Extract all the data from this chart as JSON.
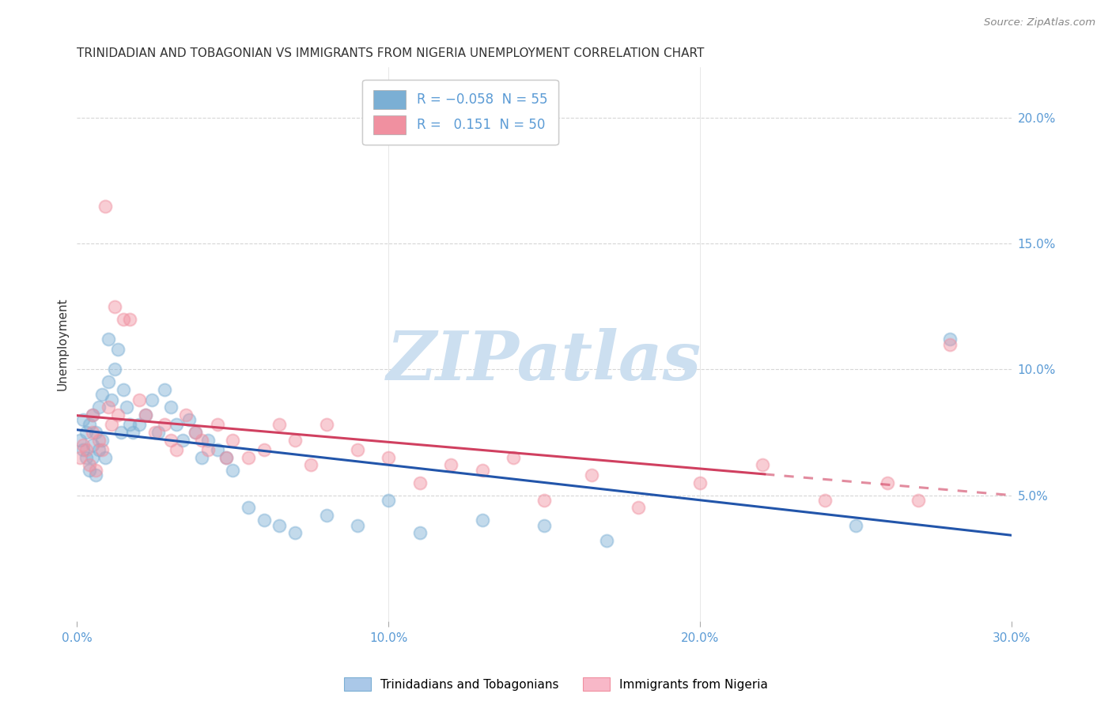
{
  "title": "TRINIDADIAN AND TOBAGONIAN VS IMMIGRANTS FROM NIGERIA UNEMPLOYMENT CORRELATION CHART",
  "source": "Source: ZipAtlas.com",
  "ylabel": "Unemployment",
  "xlim": [
    0.0,
    0.3
  ],
  "ylim": [
    0.0,
    0.22
  ],
  "right_yticks": [
    0.05,
    0.1,
    0.15,
    0.2
  ],
  "right_yticklabels": [
    "5.0%",
    "10.0%",
    "15.0%",
    "20.0%"
  ],
  "xticks": [
    0.0,
    0.1,
    0.2,
    0.3
  ],
  "xticklabels": [
    "0.0%",
    "10.0%",
    "20.0%",
    "30.0%"
  ],
  "blue_color": "#7bafd4",
  "blue_line_color": "#2255aa",
  "pink_color": "#f090a0",
  "pink_line_color": "#d04060",
  "watermark": "ZIPatlas",
  "watermark_color": "#ccdff0",
  "background_color": "#ffffff",
  "grid_color": "#cccccc",
  "title_color": "#333333",
  "axis_color": "#5b9bd5",
  "marker_size": 130,
  "marker_alpha": 0.45,
  "line_width": 2.2,
  "blue_x": [
    0.001,
    0.002,
    0.002,
    0.003,
    0.003,
    0.004,
    0.004,
    0.005,
    0.005,
    0.005,
    0.006,
    0.006,
    0.007,
    0.007,
    0.008,
    0.008,
    0.009,
    0.01,
    0.01,
    0.011,
    0.012,
    0.013,
    0.014,
    0.015,
    0.016,
    0.017,
    0.018,
    0.02,
    0.022,
    0.024,
    0.026,
    0.028,
    0.03,
    0.032,
    0.034,
    0.036,
    0.038,
    0.04,
    0.042,
    0.045,
    0.048,
    0.05,
    0.055,
    0.06,
    0.065,
    0.07,
    0.08,
    0.09,
    0.1,
    0.11,
    0.13,
    0.15,
    0.17,
    0.25,
    0.28
  ],
  "blue_y": [
    0.072,
    0.068,
    0.08,
    0.065,
    0.075,
    0.06,
    0.078,
    0.07,
    0.065,
    0.082,
    0.058,
    0.075,
    0.085,
    0.068,
    0.09,
    0.072,
    0.065,
    0.112,
    0.095,
    0.088,
    0.1,
    0.108,
    0.075,
    0.092,
    0.085,
    0.078,
    0.075,
    0.078,
    0.082,
    0.088,
    0.075,
    0.092,
    0.085,
    0.078,
    0.072,
    0.08,
    0.075,
    0.065,
    0.072,
    0.068,
    0.065,
    0.06,
    0.045,
    0.04,
    0.038,
    0.035,
    0.042,
    0.038,
    0.048,
    0.035,
    0.04,
    0.038,
    0.032,
    0.038,
    0.112
  ],
  "pink_x": [
    0.001,
    0.002,
    0.003,
    0.004,
    0.005,
    0.005,
    0.006,
    0.007,
    0.008,
    0.009,
    0.01,
    0.011,
    0.012,
    0.013,
    0.015,
    0.017,
    0.02,
    0.022,
    0.025,
    0.028,
    0.03,
    0.032,
    0.035,
    0.038,
    0.04,
    0.042,
    0.045,
    0.048,
    0.05,
    0.055,
    0.06,
    0.065,
    0.07,
    0.075,
    0.08,
    0.09,
    0.1,
    0.11,
    0.12,
    0.13,
    0.14,
    0.15,
    0.165,
    0.18,
    0.2,
    0.22,
    0.24,
    0.26,
    0.27,
    0.28
  ],
  "pink_y": [
    0.065,
    0.07,
    0.068,
    0.062,
    0.075,
    0.082,
    0.06,
    0.072,
    0.068,
    0.165,
    0.085,
    0.078,
    0.125,
    0.082,
    0.12,
    0.12,
    0.088,
    0.082,
    0.075,
    0.078,
    0.072,
    0.068,
    0.082,
    0.075,
    0.072,
    0.068,
    0.078,
    0.065,
    0.072,
    0.065,
    0.068,
    0.078,
    0.072,
    0.062,
    0.078,
    0.068,
    0.065,
    0.055,
    0.062,
    0.06,
    0.065,
    0.048,
    0.058,
    0.045,
    0.055,
    0.062,
    0.048,
    0.055,
    0.048,
    0.11
  ]
}
